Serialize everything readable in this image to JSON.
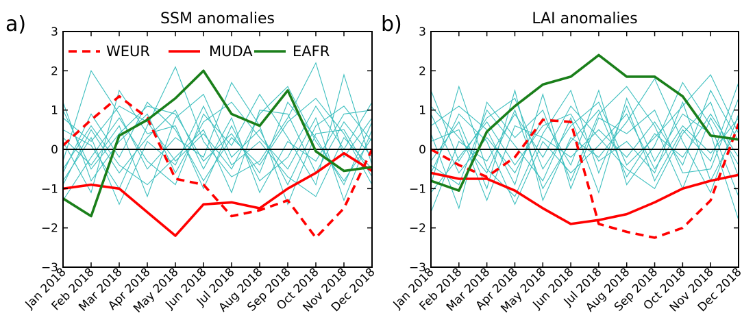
{
  "chart_data": [
    {
      "type": "line",
      "panel_label": "a)",
      "title": "SSM anomalies",
      "x": [
        "Jan 2018",
        "Feb 2018",
        "Mar 2018",
        "Apr 2018",
        "May 2018",
        "Jun 2018",
        "Jul 2018",
        "Aug 2018",
        "Sep 2018",
        "Oct 2018",
        "Nov 2018",
        "Dec 2018"
      ],
      "ylim": [
        -3,
        3
      ],
      "yticks": [
        -3,
        -2,
        -1,
        0,
        1,
        2,
        3
      ],
      "ytick_labels": [
        "−3",
        "−2",
        "−1",
        "0",
        "1",
        "2",
        "3"
      ],
      "zero_line": true,
      "legend": "top-left",
      "series": [
        {
          "name": "WEUR",
          "color": "#ff0000",
          "style": "dashed",
          "values": [
            0.1,
            0.75,
            1.35,
            0.8,
            -0.75,
            -0.9,
            -1.7,
            -1.55,
            -1.3,
            -2.25,
            -1.5,
            0.0
          ]
        },
        {
          "name": "MUDA",
          "color": "#ff0000",
          "style": "solid",
          "values": [
            -1.0,
            -0.9,
            -1.0,
            -1.6,
            -2.2,
            -1.4,
            -1.35,
            -1.5,
            -1.0,
            -0.6,
            -0.1,
            -0.55
          ]
        },
        {
          "name": "EAFR",
          "color": "#1a7f1a",
          "style": "solid",
          "values": [
            -1.25,
            -1.7,
            0.35,
            0.75,
            1.3,
            2.0,
            0.9,
            0.6,
            1.5,
            -0.05,
            -0.55,
            -0.45
          ]
        }
      ],
      "background_lines": [
        [
          0.8,
          0.2,
          1.1,
          0.7,
          -0.3,
          0.4,
          -0.5,
          0.9,
          1.6,
          0.2,
          -0.8,
          0.3
        ],
        [
          -0.6,
          0.9,
          -0.2,
          1.2,
          0.5,
          -0.8,
          0.3,
          -0.4,
          0.7,
          1.3,
          0.4,
          -0.9
        ],
        [
          0.3,
          -0.4,
          0.6,
          -1.2,
          0.8,
          1.4,
          -0.2,
          0.5,
          -0.9,
          0.6,
          1.1,
          0.2
        ],
        [
          -0.9,
          0.5,
          -0.6,
          0.3,
          1.0,
          -0.5,
          0.8,
          -1.1,
          0.2,
          -0.3,
          0.9,
          1.0
        ],
        [
          1.2,
          -0.8,
          0.2,
          0.9,
          -0.6,
          0.7,
          1.2,
          0.3,
          -0.5,
          0.8,
          -1.3,
          0.5
        ],
        [
          -0.3,
          2.0,
          0.9,
          -0.5,
          0.3,
          -0.2,
          1.7,
          0.6,
          -1.4,
          0.4,
          0.5,
          -0.7
        ],
        [
          0.5,
          0.1,
          -1.0,
          0.6,
          2.1,
          0.2,
          -0.7,
          -0.3,
          0.8,
          2.2,
          -0.2,
          0.8
        ],
        [
          -1.3,
          -0.2,
          0.8,
          -0.3,
          -0.9,
          0.9,
          0.1,
          1.4,
          0.3,
          -0.9,
          1.9,
          -0.4
        ],
        [
          0.2,
          -1.1,
          1.5,
          0.4,
          0.6,
          -1.0,
          0.6,
          -0.8,
          -0.2,
          1.1,
          0.0,
          1.2
        ],
        [
          -0.5,
          0.6,
          -0.4,
          -0.9,
          -0.2,
          0.5,
          -1.1,
          1.0,
          0.9,
          -0.6,
          0.7,
          -0.2
        ],
        [
          1.0,
          -0.5,
          0.4,
          1.1,
          0.9,
          -0.3,
          0.4,
          -0.6,
          1.2,
          0.3,
          -0.9,
          0.7
        ],
        [
          -0.8,
          0.3,
          -1.4,
          0.2,
          -0.4,
          1.1,
          -0.4,
          0.2,
          -0.7,
          -1.2,
          0.3,
          -0.5
        ]
      ]
    },
    {
      "type": "line",
      "panel_label": "b)",
      "title": "LAI anomalies",
      "x": [
        "Jan 2018",
        "Feb 2018",
        "Mar 2018",
        "Apr 2018",
        "May 2018",
        "Jun 2018",
        "Jul 2018",
        "Aug 2018",
        "Sep 2018",
        "Oct 2018",
        "Nov 2018",
        "Dec 2018"
      ],
      "ylim": [
        -3,
        3
      ],
      "yticks": [
        -3,
        -2,
        -1,
        0,
        1,
        2,
        3
      ],
      "ytick_labels": [
        "−3",
        "−2",
        "−1",
        "0",
        "1",
        "2",
        "3"
      ],
      "zero_line": true,
      "series": [
        {
          "name": "WEUR",
          "color": "#ff0000",
          "style": "dashed",
          "values": [
            0.0,
            -0.4,
            -0.7,
            -0.2,
            0.75,
            0.7,
            -1.9,
            -2.1,
            -2.25,
            -2.0,
            -1.3,
            0.65
          ]
        },
        {
          "name": "MUDA",
          "color": "#ff0000",
          "style": "solid",
          "values": [
            -0.6,
            -0.75,
            -0.75,
            -1.05,
            -1.5,
            -1.9,
            -1.8,
            -1.65,
            -1.35,
            -1.0,
            -0.8,
            -0.65
          ]
        },
        {
          "name": "EAFR",
          "color": "#1a7f1a",
          "style": "solid",
          "values": [
            -0.8,
            -1.05,
            0.45,
            1.1,
            1.65,
            1.85,
            2.4,
            1.85,
            1.85,
            1.35,
            0.35,
            0.25
          ]
        }
      ],
      "background_lines": [
        [
          1.5,
          -0.3,
          0.8,
          1.3,
          -0.5,
          0.6,
          1.2,
          -0.4,
          0.3,
          1.1,
          1.9,
          0.4
        ],
        [
          -0.9,
          1.6,
          -0.5,
          -1.2,
          0.4,
          1.5,
          -0.6,
          1.1,
          -0.8,
          0.5,
          -0.3,
          1.7
        ],
        [
          0.4,
          -1.5,
          1.2,
          0.3,
          1.0,
          -0.8,
          0.9,
          1.6,
          0.6,
          -1.0,
          0.8,
          -0.4
        ],
        [
          -0.3,
          0.7,
          -1.0,
          1.5,
          -1.3,
          0.3,
          -0.2,
          0.7,
          1.8,
          0.2,
          -1.1,
          0.9
        ],
        [
          0.9,
          -0.6,
          0.3,
          -0.6,
          0.8,
          -0.4,
          1.5,
          -0.9,
          0.1,
          1.7,
          0.6,
          -1.2
        ],
        [
          -1.6,
          0.2,
          -0.3,
          0.9,
          -0.2,
          1.1,
          0.3,
          -0.5,
          -1.0,
          0.4,
          1.2,
          -0.7
        ],
        [
          0.6,
          1.1,
          0.5,
          -0.9,
          1.4,
          -1.0,
          0.8,
          0.4,
          1.0,
          -0.6,
          -0.5,
          1.3
        ],
        [
          -0.4,
          -0.9,
          1.0,
          0.1,
          -0.8,
          0.8,
          -1.1,
          1.3,
          -0.3,
          0.9,
          0.4,
          -1.8
        ],
        [
          0.2,
          0.5,
          -1.3,
          0.6,
          0.3,
          -0.2,
          0.5,
          -0.2,
          0.7,
          -0.4,
          1.5,
          0.2
        ],
        [
          -1.1,
          -0.2,
          0.7,
          -0.4,
          0.6,
          0.9,
          -0.3,
          0.2,
          -0.6,
          1.2,
          -0.8,
          0.6
        ],
        [
          1.1,
          0.3,
          -0.6,
          1.0,
          -1.0,
          0.2,
          1.0,
          -0.7,
          0.4,
          -0.2,
          0.9,
          -0.2
        ],
        [
          -0.6,
          0.9,
          0.2,
          -1.4,
          0.2,
          -0.6,
          0.1,
          0.9,
          -0.5,
          0.6,
          -0.1,
          0.8
        ]
      ]
    }
  ],
  "colors": {
    "background_lines": "#3dbfbf",
    "zero_line": "#000000",
    "axis": "#000000"
  }
}
